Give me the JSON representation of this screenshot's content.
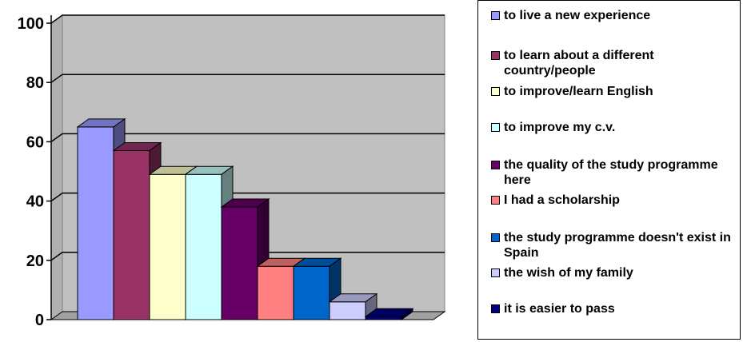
{
  "chart_data": {
    "type": "bar",
    "y_ticks": [
      "0",
      "20",
      "40",
      "60",
      "80",
      "100"
    ],
    "ylim": [
      0,
      100
    ],
    "grid": true,
    "three_d": true,
    "legend_position": "right",
    "series": [
      {
        "name": "to live a new experience",
        "value": 65,
        "color": "#9999ff"
      },
      {
        "name": "to learn about a different country/people",
        "value": 57,
        "color": "#993366"
      },
      {
        "name": "to improve/learn English",
        "value": 49,
        "color": "#ffffcc"
      },
      {
        "name": "to improve my c.v.",
        "value": 49,
        "color": "#ccffff"
      },
      {
        "name": "the quality of the study programme here",
        "value": 38,
        "color": "#660066"
      },
      {
        "name": "I had a scholarship",
        "value": 18,
        "color": "#ff8080"
      },
      {
        "name": "the study programme doesn't exist in Spain",
        "value": 18,
        "color": "#0066cc"
      },
      {
        "name": "the wish of my family",
        "value": 6,
        "color": "#ccccff"
      },
      {
        "name": "it is easier to pass",
        "value": 1,
        "color": "#000080"
      }
    ]
  }
}
